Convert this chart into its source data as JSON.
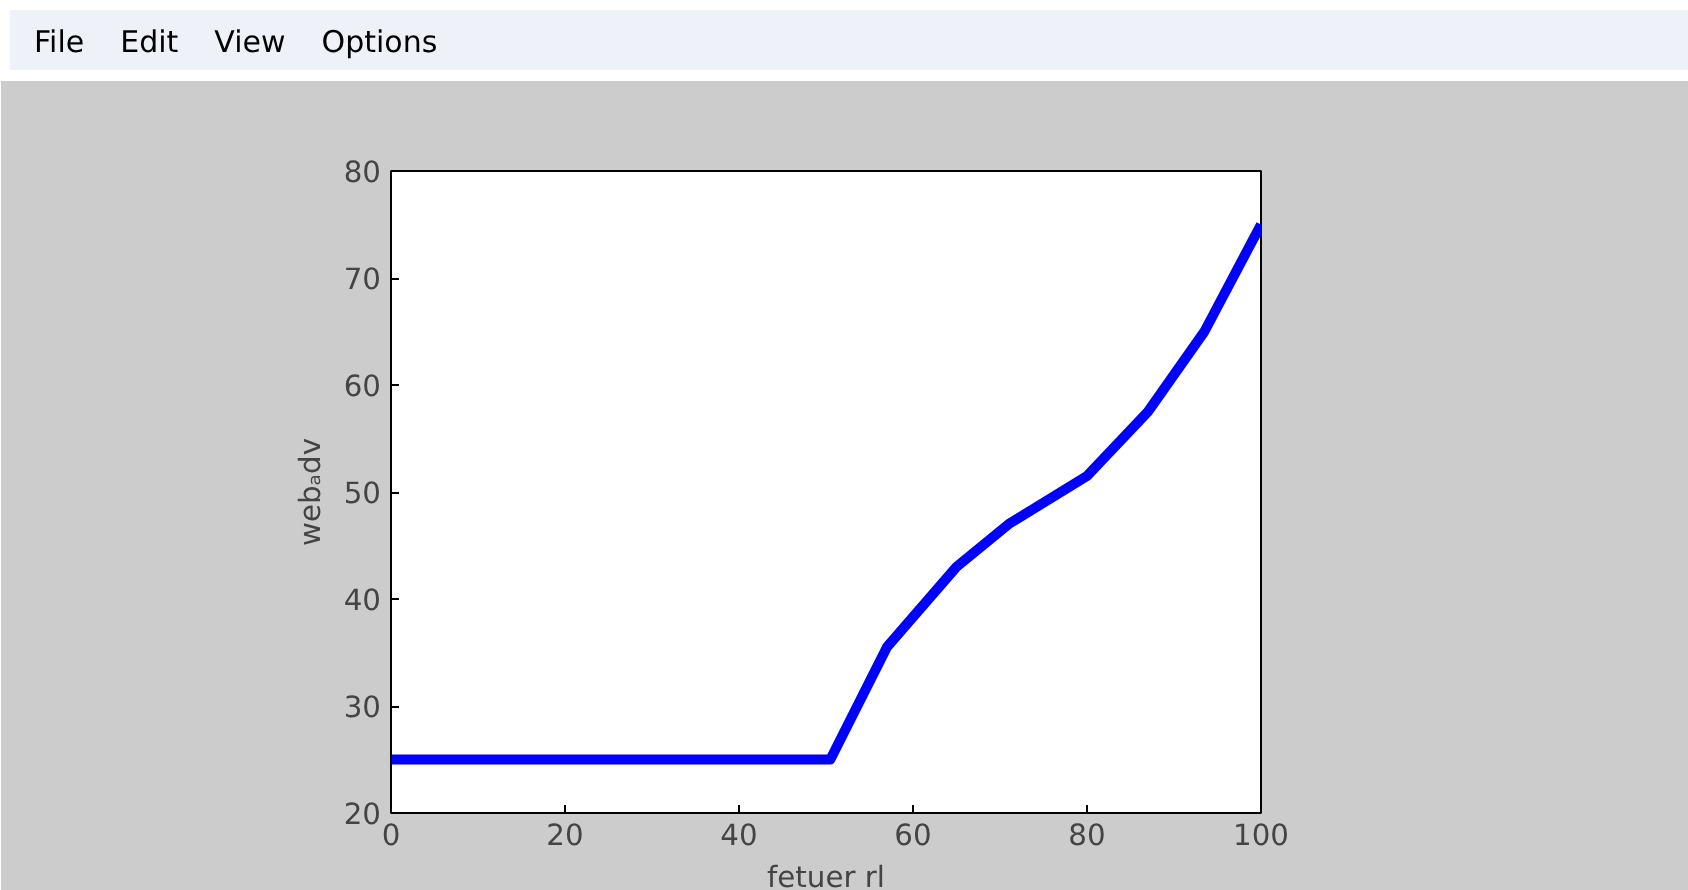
{
  "chart_data": {
    "type": "line",
    "xlabel": "fetuer rl",
    "ylabel": "webₐdv",
    "annotations": [
      "File",
      "Edit",
      "View",
      "Options"
    ],
    "x": [
      0,
      50.5,
      57,
      65,
      71,
      80,
      87,
      93.5,
      100
    ],
    "series": [
      {
        "color": "#0000ff",
        "values": [
          25,
          25,
          35.5,
          43,
          47,
          51.5,
          57.5,
          65,
          75
        ]
      }
    ],
    "xlim": [
      0,
      100
    ],
    "ylim": [
      20,
      80
    ],
    "xticks": [
      0,
      20,
      40,
      60,
      80,
      100
    ],
    "yticks": [
      20,
      30,
      40,
      50,
      60,
      70,
      80
    ],
    "grid": false,
    "marker": "none",
    "line_style": "solid"
  }
}
